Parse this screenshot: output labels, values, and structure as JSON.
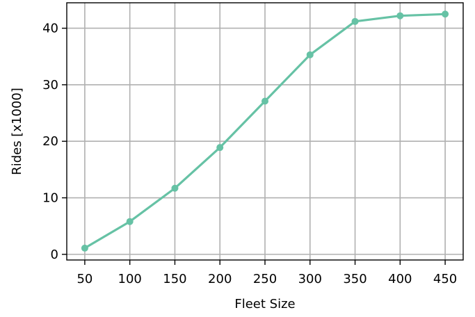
{
  "chart_data": {
    "type": "line",
    "title": "",
    "xlabel": "Fleet Size",
    "ylabel": "Rides [x1000]",
    "x": [
      50,
      100,
      150,
      200,
      250,
      300,
      350,
      400,
      450
    ],
    "series": [
      {
        "values": [
          1.1,
          5.8,
          11.7,
          18.9,
          27.1,
          35.3,
          41.2,
          42.2,
          42.5
        ]
      }
    ],
    "xticks": [
      "50",
      "100",
      "150",
      "200",
      "250",
      "300",
      "350",
      "400",
      "450"
    ],
    "yticks": [
      "0",
      "10",
      "20",
      "30",
      "40"
    ],
    "xlim": [
      30,
      470
    ],
    "ylim": [
      -1,
      44.5
    ],
    "grid": true,
    "line_color": "#66c2a5"
  }
}
